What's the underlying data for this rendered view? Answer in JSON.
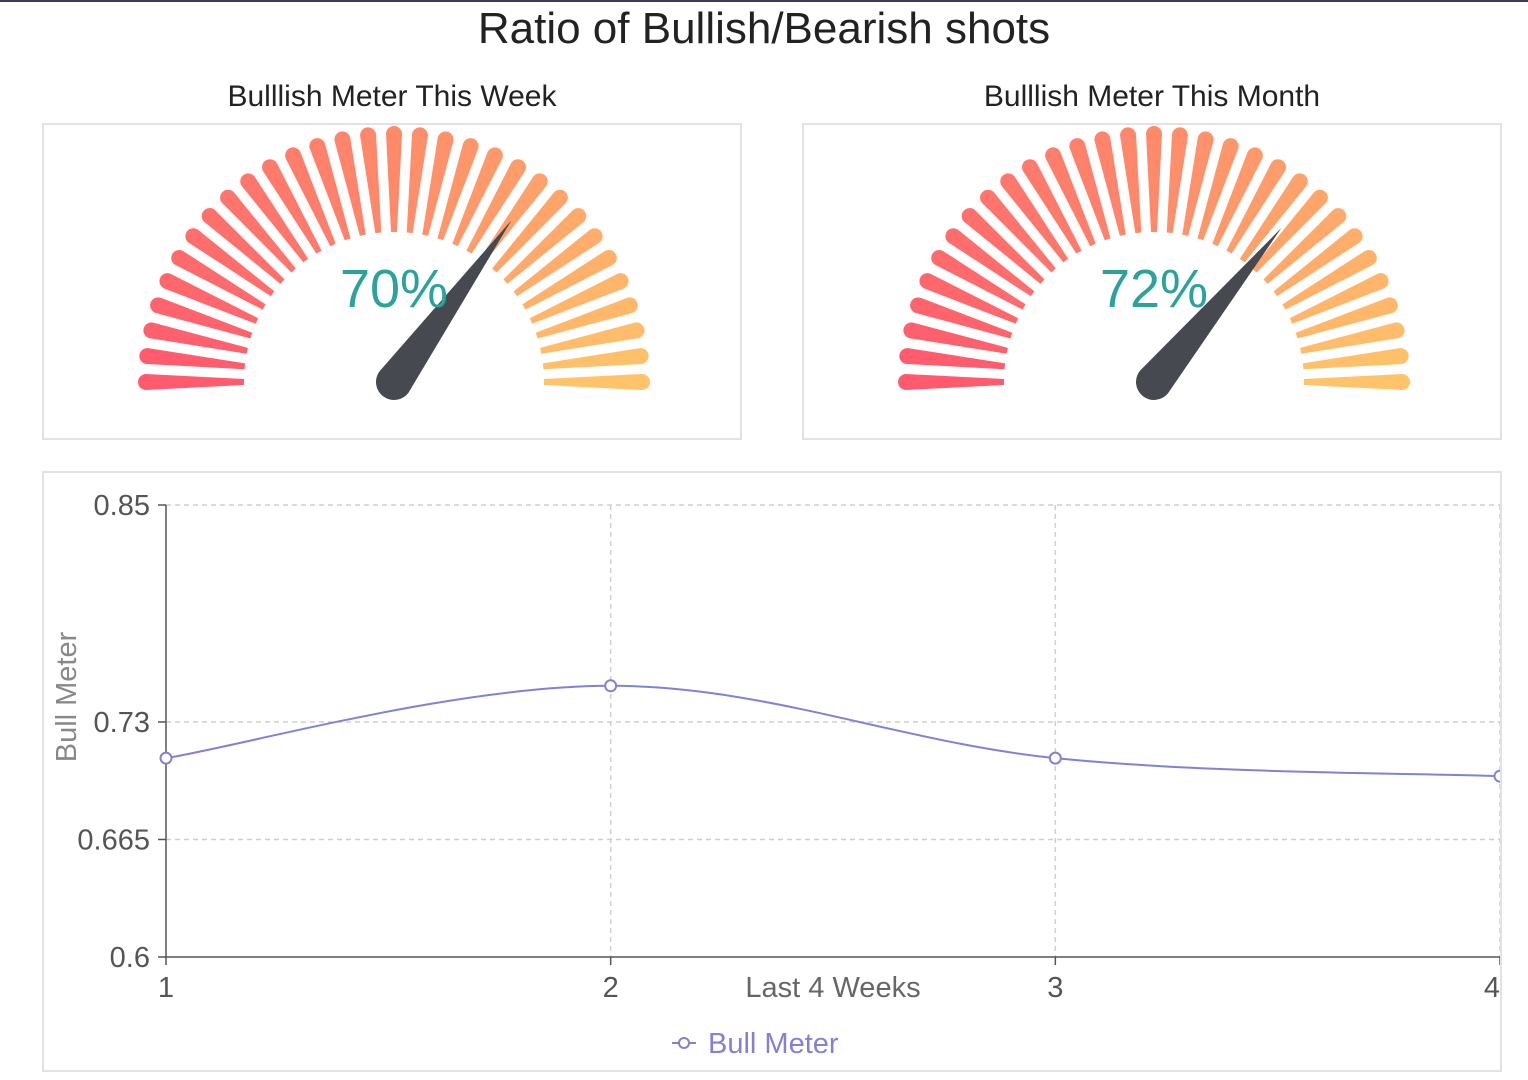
{
  "title": "Ratio of Bullish/Bearish shots",
  "gauges": [
    {
      "title": "Bulllish Meter This Week",
      "value": 0.7,
      "label": "70%"
    },
    {
      "title": "Bulllish Meter This Month",
      "value": 0.72,
      "label": "72%"
    }
  ],
  "colors": {
    "gauge_start": "#ff5a6e",
    "gauge_mid": "#ff8a6a",
    "gauge_end": "#ffc46a",
    "gauge_label": "#2aa39b",
    "needle": "#464a50",
    "line": "#8480d6"
  },
  "chart_data": {
    "type": "line",
    "smooth": true,
    "x": [
      1,
      2,
      3,
      4
    ],
    "series": [
      {
        "name": "Bull Meter",
        "values": [
          0.71,
          0.75,
          0.71,
          0.7
        ]
      }
    ],
    "xlabel": "Last 4 Weeks",
    "ylabel": "Bull Meter",
    "ylim": [
      0.6,
      0.85
    ],
    "y_ticks": [
      "0.6",
      "0.665",
      "0.73",
      "0.85"
    ],
    "x_ticks": [
      "1",
      "2",
      "3",
      "4"
    ],
    "grid": true,
    "legend": "bottom-center"
  }
}
